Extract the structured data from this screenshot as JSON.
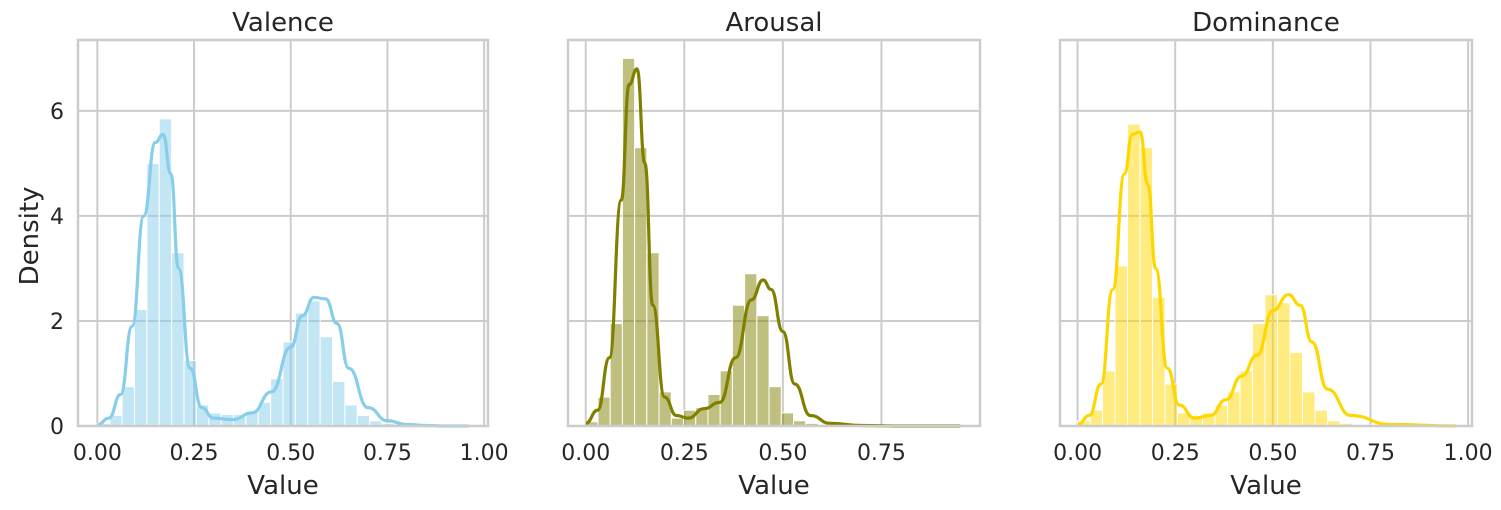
{
  "figure": {
    "ylabel": "Density",
    "xlabel": "Value"
  },
  "chart_data": [
    {
      "type": "bar",
      "title": "Valence",
      "xlabel": "Value",
      "ylabel": "Density",
      "color": "#87ceeb",
      "xlim": [
        -0.05,
        1.01
      ],
      "ylim": [
        0,
        7.35
      ],
      "xticks": [
        "0.00",
        "0.25",
        "0.50",
        "0.75",
        "1.00"
      ],
      "yticks": [
        "0",
        "2",
        "4",
        "6"
      ],
      "grid": true,
      "bin_width": 0.032,
      "bin_start": 0.0,
      "hist": [
        0.05,
        0.2,
        0.75,
        2.22,
        5.0,
        5.85,
        3.3,
        1.25,
        0.4,
        0.25,
        0.22,
        0.22,
        0.28,
        0.45,
        0.9,
        1.6,
        2.15,
        2.38,
        1.7,
        0.85,
        0.4,
        0.2,
        0.1,
        0.05,
        0.04,
        0.03,
        0.02,
        0.02,
        0.01,
        0.01
      ],
      "kde_x": [
        0.0,
        0.03,
        0.06,
        0.09,
        0.12,
        0.15,
        0.17,
        0.19,
        0.21,
        0.24,
        0.27,
        0.3,
        0.35,
        0.4,
        0.45,
        0.5,
        0.53,
        0.56,
        0.59,
        0.62,
        0.65,
        0.7,
        0.75,
        0.8,
        0.85,
        0.9,
        0.96
      ],
      "kde_y": [
        0.02,
        0.15,
        0.6,
        1.9,
        4.0,
        5.4,
        5.55,
        4.8,
        3.0,
        1.1,
        0.35,
        0.15,
        0.12,
        0.25,
        0.65,
        1.5,
        2.1,
        2.45,
        2.42,
        1.95,
        1.1,
        0.35,
        0.1,
        0.03,
        0.01,
        0.0,
        0.0
      ]
    },
    {
      "type": "bar",
      "title": "Arousal",
      "xlabel": "Value",
      "ylabel": "",
      "color": "#808000",
      "xlim": [
        -0.045,
        1.0
      ],
      "ylim": [
        0,
        7.35
      ],
      "xticks": [
        "0.00",
        "0.25",
        "0.50",
        "0.75"
      ],
      "yticks": [],
      "grid": true,
      "bin_width": 0.031,
      "bin_start": 0.0,
      "hist": [
        0.08,
        0.55,
        1.95,
        7.0,
        5.3,
        3.3,
        0.65,
        0.15,
        0.3,
        0.35,
        0.6,
        1.05,
        2.3,
        2.9,
        2.1,
        0.75,
        0.25,
        0.1,
        0.05,
        0.03,
        0.02,
        0.02,
        0.01,
        0.01,
        0.0,
        0.0,
        0.0,
        0.0,
        0.0,
        0.0
      ],
      "kde_x": [
        0.0,
        0.03,
        0.06,
        0.09,
        0.11,
        0.13,
        0.15,
        0.17,
        0.2,
        0.23,
        0.26,
        0.3,
        0.34,
        0.38,
        0.42,
        0.45,
        0.47,
        0.5,
        0.53,
        0.57,
        0.62,
        0.7,
        0.8,
        0.95
      ],
      "kde_y": [
        0.05,
        0.3,
        1.3,
        4.3,
        6.5,
        6.8,
        5.0,
        2.3,
        0.55,
        0.2,
        0.15,
        0.33,
        0.45,
        1.3,
        2.4,
        2.78,
        2.6,
        1.8,
        0.8,
        0.2,
        0.05,
        0.01,
        0.0,
        0.0
      ]
    },
    {
      "type": "bar",
      "title": "Dominance",
      "xlabel": "Value",
      "ylabel": "",
      "color": "#ffd700",
      "xlim": [
        -0.045,
        1.01
      ],
      "ylim": [
        0,
        7.35
      ],
      "xticks": [
        "0.00",
        "0.25",
        "0.50",
        "0.75",
        "1.00"
      ],
      "yticks": [],
      "grid": true,
      "bin_width": 0.032,
      "bin_start": 0.0,
      "hist": [
        0.1,
        0.3,
        1.05,
        3.05,
        5.75,
        5.3,
        2.45,
        0.8,
        0.25,
        0.2,
        0.25,
        0.4,
        0.65,
        1.05,
        1.95,
        2.5,
        2.35,
        1.4,
        0.65,
        0.3,
        0.1,
        0.05,
        0.03,
        0.02,
        0.01,
        0.01,
        0.0,
        0.0,
        0.0,
        0.0
      ],
      "kde_x": [
        0.0,
        0.03,
        0.06,
        0.09,
        0.12,
        0.14,
        0.16,
        0.18,
        0.2,
        0.23,
        0.26,
        0.3,
        0.34,
        0.38,
        0.42,
        0.46,
        0.5,
        0.54,
        0.57,
        0.6,
        0.64,
        0.7,
        0.8,
        0.97
      ],
      "kde_y": [
        0.02,
        0.2,
        0.8,
        2.6,
        4.8,
        5.55,
        5.6,
        4.6,
        3.0,
        1.1,
        0.4,
        0.15,
        0.2,
        0.5,
        0.95,
        1.35,
        2.2,
        2.5,
        2.3,
        1.6,
        0.7,
        0.2,
        0.03,
        0.0
      ]
    }
  ]
}
